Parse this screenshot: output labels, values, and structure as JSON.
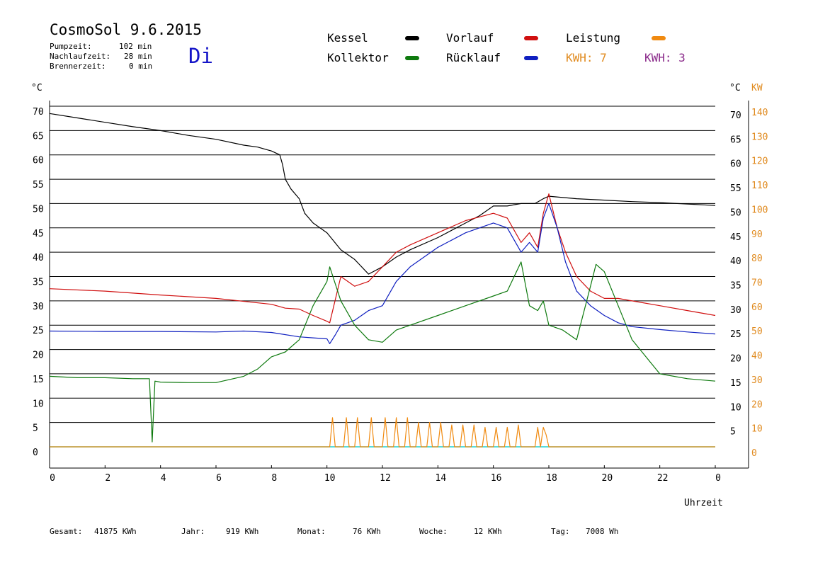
{
  "header": {
    "title": "CosmoSol 9.6.2015",
    "day": "Di",
    "stats": [
      {
        "label": "Pumpzeit:",
        "value": "102 min"
      },
      {
        "label": "Nachlaufzeit:",
        "value": "28 min"
      },
      {
        "label": "Brennerzeit:",
        "value": "0 min"
      }
    ]
  },
  "legend": {
    "kessel": "Kessel",
    "kollektor": "Kollektor",
    "vorlauf": "Vorlauf",
    "ruecklauf": "Rücklauf",
    "leistung": "Leistung",
    "kwh1": "KWH: 7",
    "kwh2": "KWH: 3"
  },
  "colors": {
    "kessel": "#000000",
    "kollektor": "#0f7a0f",
    "vorlauf": "#d01010",
    "ruecklauf": "#1020c0",
    "leistung": "#f08a10",
    "kwh2": "#8a2a8a",
    "baseline": "#20d0d0"
  },
  "footer": [
    {
      "label": "Gesamt:",
      "value": "41875 KWh"
    },
    {
      "label": "Jahr:",
      "value": "919 KWh"
    },
    {
      "label": "Monat:",
      "value": "76 KWh"
    },
    {
      "label": "Woche:",
      "value": "12 KWh"
    },
    {
      "label": "Tag:",
      "value": "7008 Wh"
    }
  ],
  "chart_data": {
    "type": "line",
    "xlabel": "Uhrzeit",
    "ylabel_left": "°C",
    "ylabel_right": "°C",
    "ylabel_power": "KW",
    "xlim": [
      0,
      24
    ],
    "ylim": [
      0,
      70
    ],
    "power_lim": [
      0,
      140
    ],
    "x_ticks": [
      "0",
      "2",
      "4",
      "6",
      "8",
      "10",
      "12",
      "14",
      "16",
      "18",
      "20",
      "22",
      "0"
    ],
    "y_ticks": [
      0,
      5,
      10,
      15,
      20,
      25,
      30,
      35,
      40,
      45,
      50,
      55,
      60,
      65,
      70
    ],
    "power_ticks": [
      0,
      10,
      20,
      30,
      40,
      50,
      60,
      70,
      80,
      90,
      100,
      110,
      120,
      130,
      140
    ],
    "grid": true,
    "series": [
      {
        "name": "Kessel",
        "x": [
          0,
          1,
          2,
          3,
          4,
          5,
          6,
          7,
          7.5,
          8,
          8.3,
          8.4,
          8.5,
          8.7,
          9,
          9.2,
          9.5,
          10,
          10.5,
          11,
          11.5,
          12,
          12.5,
          13,
          14,
          15,
          15.5,
          16,
          16.5,
          17,
          17.5,
          17.8,
          18,
          19,
          20,
          21,
          22,
          23,
          24
        ],
        "y": [
          68.5,
          67.6,
          66.7,
          65.8,
          65,
          64,
          63.2,
          62,
          61.6,
          60.8,
          60,
          58,
          55,
          53,
          51,
          48,
          46,
          44,
          40.5,
          38.5,
          35.5,
          37,
          39,
          40.5,
          43,
          46,
          47.5,
          49.5,
          49.5,
          50,
          50,
          51,
          51.5,
          51,
          50.7,
          50.4,
          50.2,
          49.9,
          49.6
        ]
      },
      {
        "name": "Vorlauf",
        "x": [
          0,
          2,
          4,
          6,
          8,
          8.5,
          9,
          9.5,
          10,
          10.1,
          10.5,
          11,
          11.5,
          12,
          12.5,
          13,
          14,
          15,
          16,
          16.5,
          17,
          17.3,
          17.6,
          17.8,
          18,
          18.3,
          18.6,
          19,
          19.5,
          20,
          20.5,
          21,
          22,
          23,
          24
        ],
        "y": [
          32.5,
          32,
          31.2,
          30.5,
          29.3,
          28.5,
          28.3,
          27,
          25.8,
          25.5,
          35,
          33,
          34,
          37,
          40,
          41.5,
          44,
          46.5,
          48,
          47,
          42,
          44,
          41,
          48,
          52,
          45,
          40,
          35,
          32,
          30.5,
          30.5,
          30,
          29,
          28,
          27
        ]
      },
      {
        "name": "Rücklauf",
        "x": [
          0,
          2,
          4,
          6,
          7,
          8,
          9,
          9.5,
          10,
          10.1,
          10.3,
          10.5,
          11,
          11.5,
          12,
          12.5,
          13,
          14,
          15,
          16,
          16.5,
          17,
          17.3,
          17.6,
          17.8,
          18,
          18.3,
          18.6,
          19,
          19.5,
          20,
          20.5,
          21,
          22,
          23,
          24
        ],
        "y": [
          23.8,
          23.7,
          23.7,
          23.6,
          23.8,
          23.5,
          22.6,
          22.4,
          22.2,
          21.2,
          23,
          25,
          26,
          28,
          29,
          34,
          37,
          41,
          44,
          46,
          45,
          40,
          42,
          40,
          47,
          50,
          45,
          38,
          32,
          29,
          27,
          25.5,
          24.7,
          24.1,
          23.6,
          23.2
        ]
      },
      {
        "name": "Kollektor",
        "x": [
          0,
          1,
          2,
          3,
          3.6,
          3.7,
          3.8,
          4,
          5,
          6,
          7,
          7.5,
          8,
          8.5,
          9,
          9.5,
          10,
          10.1,
          10.5,
          11,
          11.5,
          12,
          12.5,
          13,
          14,
          15,
          16,
          16.5,
          17,
          17.3,
          17.6,
          17.8,
          18,
          18.5,
          19,
          19.5,
          19.7,
          20,
          20.5,
          21,
          22,
          23,
          24
        ],
        "y": [
          14.5,
          14.2,
          14.2,
          14,
          14,
          1,
          13.5,
          13.3,
          13.2,
          13.2,
          14.5,
          16,
          18.5,
          19.5,
          22,
          29,
          34,
          37,
          30,
          25,
          22,
          21.5,
          24,
          25,
          27,
          29,
          31,
          32,
          38,
          29,
          28,
          30,
          25,
          24,
          22,
          33,
          37.5,
          36,
          29,
          22,
          15,
          14,
          13.5
        ]
      },
      {
        "name": "Leistung",
        "x": [
          0,
          10.1,
          10.2,
          10.3,
          10.6,
          10.7,
          10.8,
          11,
          11.1,
          11.2,
          11.5,
          11.6,
          11.7,
          12,
          12.1,
          12.2,
          12.4,
          12.5,
          12.6,
          12.8,
          12.9,
          13,
          13.2,
          13.3,
          13.4,
          13.6,
          13.7,
          13.8,
          14,
          14.1,
          14.2,
          14.4,
          14.5,
          14.6,
          14.8,
          14.9,
          15,
          15.2,
          15.3,
          15.4,
          15.6,
          15.7,
          15.8,
          16,
          16.1,
          16.2,
          16.4,
          16.5,
          16.6,
          16.8,
          16.9,
          17,
          17.5,
          17.6,
          17.7,
          17.8,
          17.9,
          18,
          24
        ],
        "y": [
          0,
          0,
          12,
          0,
          0,
          12,
          0,
          0,
          12,
          0,
          0,
          12,
          0,
          0,
          12,
          0,
          0,
          12,
          0,
          0,
          12,
          0,
          0,
          10,
          0,
          0,
          10,
          0,
          0,
          10,
          0,
          0,
          9,
          0,
          0,
          9,
          0,
          0,
          9,
          0,
          0,
          8,
          0,
          0,
          8,
          0,
          0,
          8,
          0,
          0,
          9,
          0,
          0,
          8,
          0,
          8,
          5,
          0,
          0
        ]
      }
    ]
  }
}
